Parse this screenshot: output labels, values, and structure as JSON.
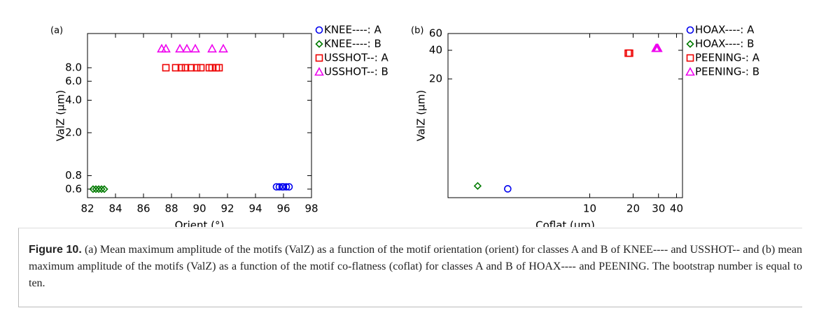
{
  "chart_data": [
    {
      "type": "scatter",
      "title": "(a)",
      "xlabel": "Orient (°)",
      "ylabel": "ValZ (µm)",
      "xscale": "linear",
      "yscale": "log",
      "legend": "right",
      "xlim": [
        82,
        98
      ],
      "xticks": [
        82,
        84,
        86,
        88,
        90,
        92,
        94,
        96,
        98
      ],
      "ylim": [
        0.5,
        16.6
      ],
      "yticks": [
        {
          "value": 0.6,
          "label": "0.6"
        },
        {
          "value": 0.8,
          "label": "0.8"
        },
        {
          "value": 2,
          "label": "2.0"
        },
        {
          "value": 4,
          "label": "4.0"
        },
        {
          "value": 6,
          "label": "6.0"
        },
        {
          "value": 8,
          "label": "8.0"
        }
      ],
      "series": [
        {
          "name": "KNEE----: A",
          "color": "#0000ee",
          "marker": "circle",
          "x": [
            95.5,
            95.7,
            95.9,
            96.0,
            96.2,
            96.4
          ],
          "values": [
            0.63,
            0.63,
            0.63,
            0.63,
            0.63,
            0.63
          ]
        },
        {
          "name": "KNEE----: B",
          "color": "#007a00",
          "marker": "diamond",
          "x": [
            82.4,
            82.6,
            82.8,
            83.0,
            83.2
          ],
          "values": [
            0.6,
            0.6,
            0.6,
            0.6,
            0.6
          ]
        },
        {
          "name": "USSHOT--: A",
          "color": "#ee0000",
          "marker": "square",
          "x": [
            87.6,
            88.3,
            88.7,
            89.0,
            89.4,
            89.8,
            90.1,
            90.7,
            90.9,
            91.2,
            91.4
          ],
          "values": [
            8,
            8,
            8,
            8,
            8,
            8,
            8,
            8,
            8,
            8,
            8
          ]
        },
        {
          "name": "USSHOT--: B",
          "color": "#ee00ee",
          "marker": "triangle",
          "x": [
            87.3,
            87.6,
            88.6,
            89.1,
            89.7,
            90.9,
            91.7
          ],
          "values": [
            12,
            12,
            12,
            12,
            12,
            12,
            12
          ]
        }
      ]
    },
    {
      "type": "scatter",
      "title": "(b)",
      "xlabel": "Coflat (µm)",
      "ylabel": "ValZ (µm)",
      "xscale": "log",
      "yscale": "log",
      "legend": "right",
      "xlim": [
        1.04,
        44
      ],
      "xticks": [
        10,
        20,
        30,
        40
      ],
      "ylim": [
        1.13,
        60
      ],
      "yticks": [
        20,
        40,
        60
      ],
      "series": [
        {
          "name": "HOAX----: A",
          "color": "#0000ee",
          "marker": "circle",
          "x": [
            2.7
          ],
          "values": [
            1.4
          ]
        },
        {
          "name": "HOAX----: B",
          "color": "#007a00",
          "marker": "diamond",
          "x": [
            1.67
          ],
          "values": [
            1.5
          ]
        },
        {
          "name": "PEENING-: A",
          "color": "#ee0000",
          "marker": "square",
          "x": [
            18.5,
            18.9
          ],
          "values": [
            37.3,
            37.3
          ]
        },
        {
          "name": "PEENING-: B",
          "color": "#ee00ee",
          "marker": "triangle",
          "x": [
            28.8,
            29.3,
            29.7
          ],
          "values": [
            42,
            42,
            42
          ]
        }
      ]
    }
  ],
  "caption": {
    "label": "Figure 10.",
    "text": "(a) Mean maximum amplitude of the motifs (ValZ) as a function of the motif orientation (orient) for classes A and B of KNEE---- and USSHOT-- and (b) mean maximum amplitude of the motifs (ValZ) as a function of the motif co-flatness (coflat) for classes A and B of HOAX---- and PEENING. The bootstrap number is equal to ten."
  }
}
